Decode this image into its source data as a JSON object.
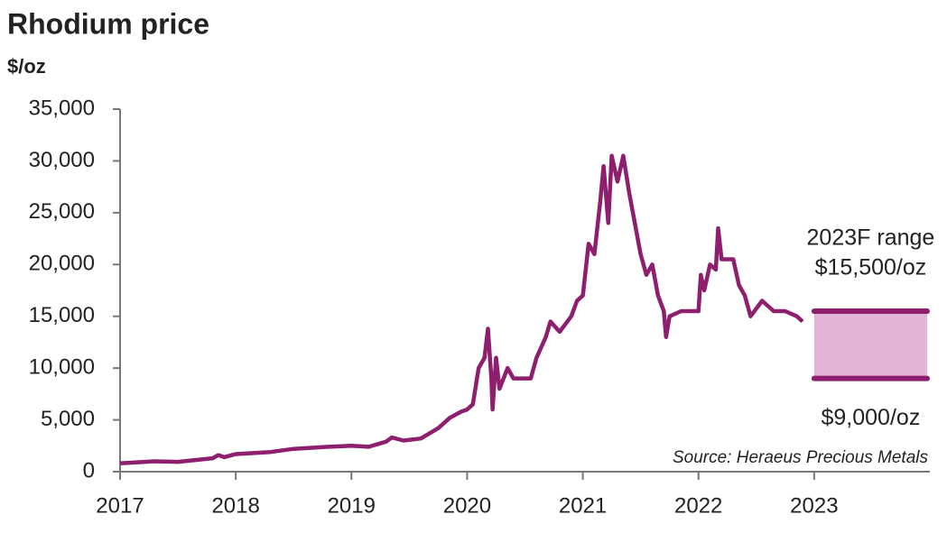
{
  "chart_data": {
    "type": "line",
    "title": "Rhodium price",
    "y_label": "$/oz",
    "source": "Source: Heraeus Precious Metals",
    "color": "#8e1f6e",
    "x": [
      2017.0,
      2017.3,
      2017.5,
      2017.8,
      2017.85,
      2017.9,
      2018.0,
      2018.3,
      2018.5,
      2018.8,
      2019.0,
      2019.15,
      2019.3,
      2019.35,
      2019.45,
      2019.6,
      2019.75,
      2019.85,
      2019.95,
      2020.0,
      2020.05,
      2020.1,
      2020.15,
      2020.18,
      2020.21,
      2020.22,
      2020.25,
      2020.28,
      2020.35,
      2020.4,
      2020.55,
      2020.6,
      2020.68,
      2020.72,
      2020.8,
      2020.9,
      2020.95,
      2021.0,
      2021.05,
      2021.1,
      2021.15,
      2021.18,
      2021.22,
      2021.25,
      2021.3,
      2021.35,
      2021.4,
      2021.45,
      2021.5,
      2021.55,
      2021.6,
      2021.65,
      2021.7,
      2021.72,
      2021.75,
      2021.85,
      2022.0,
      2022.02,
      2022.05,
      2022.1,
      2022.15,
      2022.17,
      2022.2,
      2022.3,
      2022.35,
      2022.4,
      2022.45,
      2022.55,
      2022.65,
      2022.75,
      2022.85,
      2022.9
    ],
    "values": [
      800,
      1000,
      950,
      1300,
      1600,
      1400,
      1700,
      1900,
      2200,
      2400,
      2500,
      2400,
      2900,
      3300,
      3000,
      3200,
      4200,
      5200,
      5800,
      6000,
      6500,
      10000,
      11000,
      13800,
      9000,
      6000,
      11000,
      8000,
      10000,
      9000,
      9000,
      11000,
      13000,
      14500,
      13500,
      15000,
      16500,
      17000,
      22000,
      21000,
      26000,
      29500,
      24000,
      30500,
      28000,
      30500,
      27000,
      24000,
      21000,
      19000,
      20000,
      17000,
      15500,
      13000,
      15000,
      15500,
      15500,
      19000,
      17500,
      20000,
      19500,
      23500,
      20500,
      20500,
      18000,
      17000,
      15000,
      16500,
      15500,
      15500,
      15000,
      14500
    ],
    "xlim": [
      2017,
      2024
    ],
    "xticks": [
      2017,
      2018,
      2019,
      2020,
      2021,
      2022,
      2023
    ],
    "ylim": [
      0,
      35000
    ],
    "yticks": [
      0,
      {
        "value": 5000,
        "label": "5,000"
      },
      {
        "value": 10000,
        "label": "10,000"
      },
      {
        "value": 15000,
        "label": "15,000"
      },
      {
        "value": 20000,
        "label": "20,000"
      },
      {
        "value": 25000,
        "label": "25,000"
      },
      {
        "value": 30000,
        "label": "30,000"
      },
      {
        "value": 35000,
        "label": "35,000"
      }
    ],
    "forecast": {
      "label": "2023F range",
      "x": [
        2023,
        2024
      ],
      "high": 15500,
      "high_label": "$15,500/oz",
      "low": 9000,
      "low_label": "$9,000/oz",
      "fill": "#e4b4d6"
    }
  }
}
